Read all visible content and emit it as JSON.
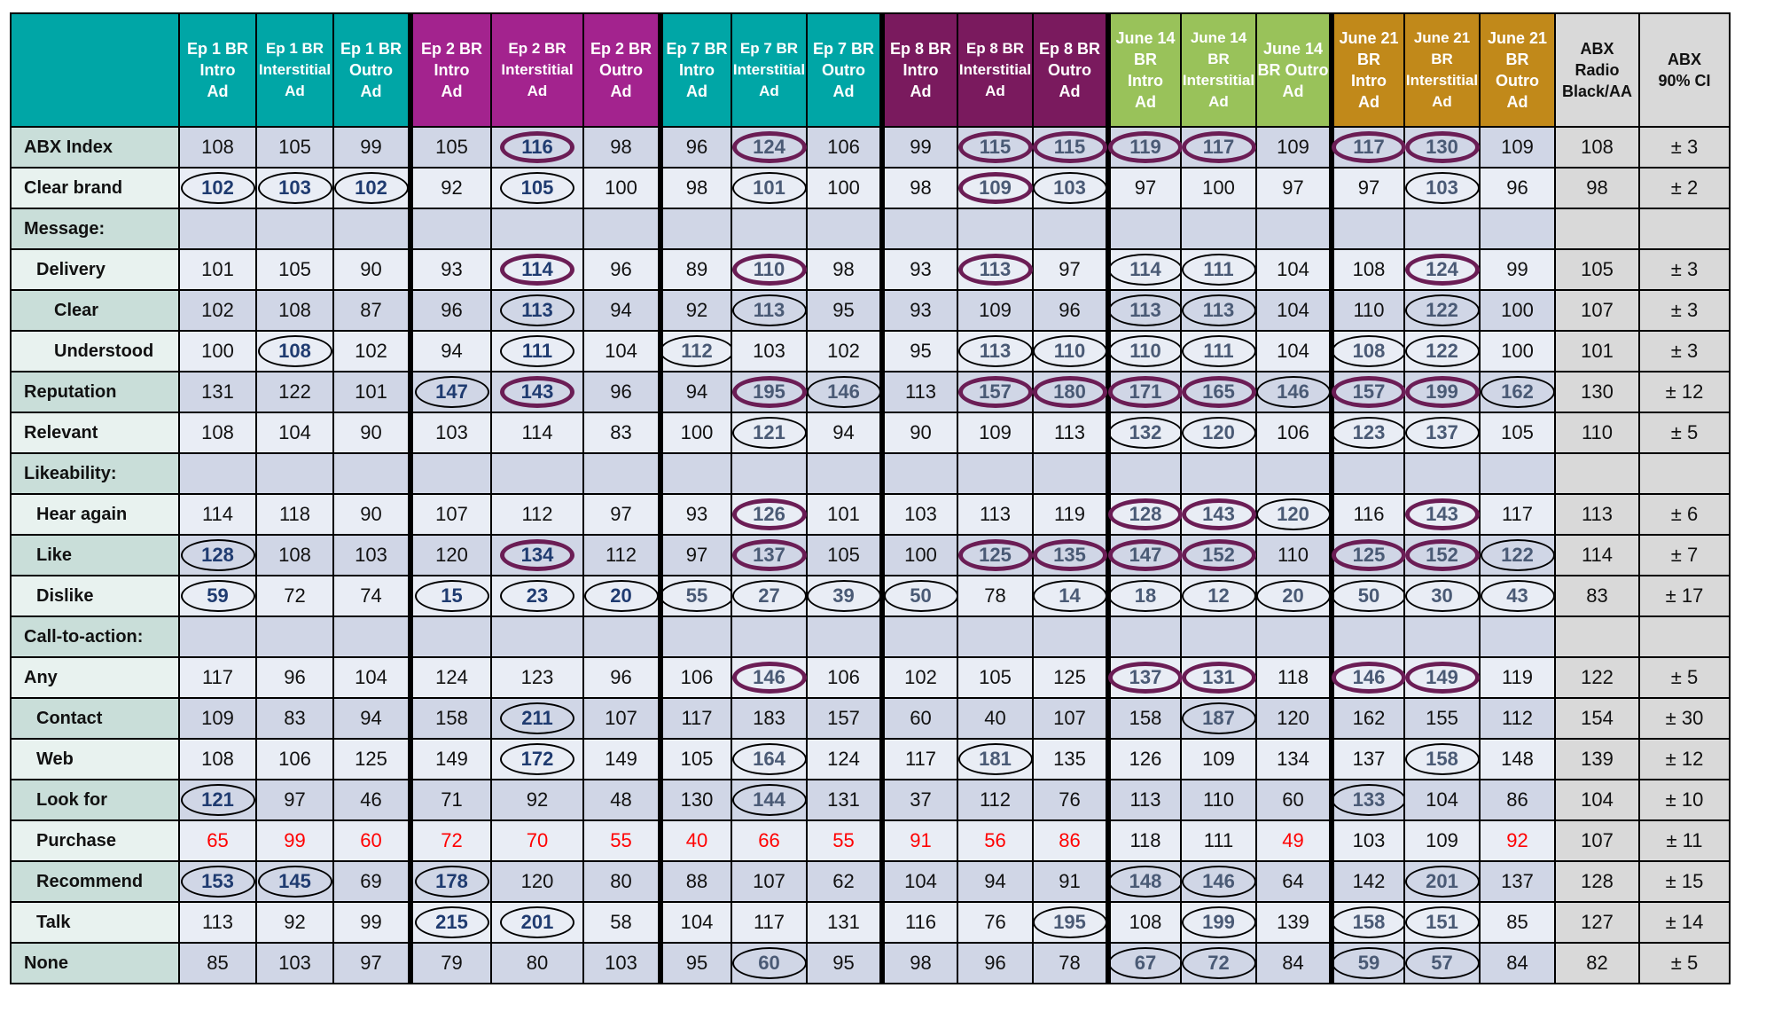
{
  "colors": {
    "teal": "#00a6a6",
    "magenta": "#a3238e",
    "plum": "#7a1a5e",
    "green": "#99c25a",
    "gold": "#c1891a",
    "benchmark": "#d9d9d9",
    "row_label_a": "#c9ded9",
    "row_label_b": "#e8f2ef",
    "row_data_a": "#d0d6e6",
    "row_data_b": "#e9edf5",
    "red_text": "#ff0000",
    "purple_ring": "#6b1d55"
  },
  "chart_data": {
    "type": "table",
    "columns": [
      {
        "label": "Ep 1 BR\nIntro\nAd",
        "group": "teal"
      },
      {
        "label": "Ep 1 BR\nInterstitial\nAd",
        "group": "teal"
      },
      {
        "label": "Ep 1 BR\nOutro\nAd",
        "group": "teal"
      },
      {
        "label": "Ep 2 BR\nIntro\nAd",
        "group": "magenta"
      },
      {
        "label": "Ep 2  BR\nInterstitial\nAd",
        "group": "magenta"
      },
      {
        "label": "Ep 2 BR\nOutro\nAd",
        "group": "magenta"
      },
      {
        "label": "Ep 7 BR\nIntro\nAd",
        "group": "teal"
      },
      {
        "label": "Ep 7 BR\nInterstitial\nAd",
        "group": "teal"
      },
      {
        "label": "Ep 7 BR\nOutro\nAd",
        "group": "teal"
      },
      {
        "label": "Ep 8 BR\nIntro\nAd",
        "group": "plum"
      },
      {
        "label": "Ep 8 BR\nInterstitial\nAd",
        "group": "plum"
      },
      {
        "label": "Ep 8 BR\nOutro\nAd",
        "group": "plum"
      },
      {
        "label": "June 14\nBR\nIntro\nAd",
        "group": "green"
      },
      {
        "label": "June 14\nBR\nInterstitial\nAd",
        "group": "green"
      },
      {
        "label": "June 14\nBR Outro\nAd",
        "group": "green"
      },
      {
        "label": "June 21\nBR\nIntro\nAd",
        "group": "gold"
      },
      {
        "label": "June 21\nBR\nInterstitial\nAd",
        "group": "gold"
      },
      {
        "label": "June 21\nBR\nOutro\nAd",
        "group": "gold"
      },
      {
        "label": "ABX\nRadio\nBlack/AA",
        "group": "bench"
      },
      {
        "label": "ABX\n90% CI",
        "group": "bench"
      }
    ],
    "rows": [
      {
        "label": "ABX Index",
        "indent": 0,
        "values": [
          "108",
          "105",
          "99",
          "105",
          "116",
          "98",
          "96",
          "124",
          "106",
          "99",
          "115",
          "115",
          "119",
          "117",
          "109",
          "117",
          "130",
          "109",
          "108",
          "± 3"
        ]
      },
      {
        "label": "Clear brand",
        "indent": 0,
        "values": [
          "102",
          "103",
          "102",
          "92",
          "105",
          "100",
          "98",
          "101",
          "100",
          "98",
          "109",
          "103",
          "97",
          "100",
          "97",
          "97",
          "103",
          "96",
          "98",
          "± 2"
        ]
      },
      {
        "label": "Message:",
        "indent": 0,
        "values": [
          "",
          "",
          "",
          "",
          "",
          "",
          "",
          "",
          "",
          "",
          "",
          "",
          "",
          "",
          "",
          "",
          "",
          "",
          "",
          ""
        ]
      },
      {
        "label": "Delivery",
        "indent": 1,
        "values": [
          "101",
          "105",
          "90",
          "93",
          "114",
          "96",
          "89",
          "110",
          "98",
          "93",
          "113",
          "97",
          "114",
          "111",
          "104",
          "108",
          "124",
          "99",
          "105",
          "± 3"
        ]
      },
      {
        "label": "Clear",
        "indent": 2,
        "values": [
          "102",
          "108",
          "87",
          "96",
          "113",
          "94",
          "92",
          "113",
          "95",
          "93",
          "109",
          "96",
          "113",
          "113",
          "104",
          "110",
          "122",
          "100",
          "107",
          "± 3"
        ]
      },
      {
        "label": "Understood",
        "indent": 2,
        "values": [
          "100",
          "108",
          "102",
          "94",
          "111",
          "104",
          "112",
          "103",
          "102",
          "95",
          "113",
          "110",
          "110",
          "111",
          "104",
          "108",
          "122",
          "100",
          "101",
          "± 3"
        ]
      },
      {
        "label": "Reputation",
        "indent": 0,
        "values": [
          "131",
          "122",
          "101",
          "147",
          "143",
          "96",
          "94",
          "195",
          "146",
          "113",
          "157",
          "180",
          "171",
          "165",
          "146",
          "157",
          "199",
          "162",
          "130",
          "± 12"
        ]
      },
      {
        "label": "Relevant",
        "indent": 0,
        "values": [
          "108",
          "104",
          "90",
          "103",
          "114",
          "83",
          "100",
          "121",
          "94",
          "90",
          "109",
          "113",
          "132",
          "120",
          "106",
          "123",
          "137",
          "105",
          "110",
          "± 5"
        ]
      },
      {
        "label": "Likeability:",
        "indent": 0,
        "values": [
          "",
          "",
          "",
          "",
          "",
          "",
          "",
          "",
          "",
          "",
          "",
          "",
          "",
          "",
          "",
          "",
          "",
          "",
          "",
          ""
        ]
      },
      {
        "label": "Hear again",
        "indent": 1,
        "values": [
          "114",
          "118",
          "90",
          "107",
          "112",
          "97",
          "93",
          "126",
          "101",
          "103",
          "113",
          "119",
          "128",
          "143",
          "120",
          "116",
          "143",
          "117",
          "113",
          "± 6"
        ]
      },
      {
        "label": "Like",
        "indent": 1,
        "values": [
          "128",
          "108",
          "103",
          "120",
          "134",
          "112",
          "97",
          "137",
          "105",
          "100",
          "125",
          "135",
          "147",
          "152",
          "110",
          "125",
          "152",
          "122",
          "114",
          "± 7"
        ]
      },
      {
        "label": "Dislike",
        "indent": 1,
        "values": [
          "59",
          "72",
          "74",
          "15",
          "23",
          "20",
          "55",
          "27",
          "39",
          "50",
          "78",
          "14",
          "18",
          "12",
          "20",
          "50",
          "30",
          "43",
          "83",
          "± 17"
        ]
      },
      {
        "label": "Call-to-action:",
        "indent": 0,
        "values": [
          "",
          "",
          "",
          "",
          "",
          "",
          "",
          "",
          "",
          "",
          "",
          "",
          "",
          "",
          "",
          "",
          "",
          "",
          "",
          ""
        ]
      },
      {
        "label": "Any",
        "indent": 0,
        "values": [
          "117",
          "96",
          "104",
          "124",
          "123",
          "96",
          "106",
          "146",
          "106",
          "102",
          "105",
          "125",
          "137",
          "131",
          "118",
          "146",
          "149",
          "119",
          "122",
          "± 5"
        ]
      },
      {
        "label": "Contact",
        "indent": 1,
        "values": [
          "109",
          "83",
          "94",
          "158",
          "211",
          "107",
          "117",
          "183",
          "157",
          "60",
          "40",
          "107",
          "158",
          "187",
          "120",
          "162",
          "155",
          "112",
          "154",
          "± 30"
        ]
      },
      {
        "label": "Web",
        "indent": 1,
        "values": [
          "108",
          "106",
          "125",
          "149",
          "172",
          "149",
          "105",
          "164",
          "124",
          "117",
          "181",
          "135",
          "126",
          "109",
          "134",
          "137",
          "158",
          "148",
          "139",
          "± 12"
        ]
      },
      {
        "label": "Look for",
        "indent": 1,
        "values": [
          "121",
          "97",
          "46",
          "71",
          "92",
          "48",
          "130",
          "144",
          "131",
          "37",
          "112",
          "76",
          "113",
          "110",
          "60",
          "133",
          "104",
          "86",
          "104",
          "± 10"
        ]
      },
      {
        "label": "Purchase",
        "indent": 1,
        "values": [
          "65",
          "99",
          "60",
          "72",
          "70",
          "55",
          "40",
          "66",
          "55",
          "91",
          "56",
          "86",
          "118",
          "111",
          "49",
          "103",
          "109",
          "92",
          "107",
          "± 11"
        ]
      },
      {
        "label": "Recommend",
        "indent": 1,
        "values": [
          "153",
          "145",
          "69",
          "178",
          "120",
          "80",
          "88",
          "107",
          "62",
          "104",
          "94",
          "91",
          "148",
          "146",
          "64",
          "142",
          "201",
          "137",
          "128",
          "± 15"
        ]
      },
      {
        "label": "Talk",
        "indent": 1,
        "values": [
          "113",
          "92",
          "99",
          "215",
          "201",
          "58",
          "104",
          "117",
          "131",
          "116",
          "76",
          "195",
          "108",
          "199",
          "139",
          "158",
          "151",
          "85",
          "127",
          "± 14"
        ]
      },
      {
        "label": "None",
        "indent": 0,
        "values": [
          "85",
          "103",
          "97",
          "79",
          "80",
          "103",
          "95",
          "60",
          "95",
          "98",
          "96",
          "78",
          "67",
          "72",
          "84",
          "59",
          "57",
          "84",
          "82",
          "± 5"
        ]
      }
    ],
    "circled": {
      "purple": [
        [
          0,
          4
        ],
        [
          0,
          7
        ],
        [
          0,
          10
        ],
        [
          0,
          11
        ],
        [
          0,
          12
        ],
        [
          0,
          13
        ],
        [
          0,
          15
        ],
        [
          0,
          16
        ],
        [
          1,
          10
        ],
        [
          3,
          4
        ],
        [
          3,
          7
        ],
        [
          3,
          10
        ],
        [
          3,
          16
        ],
        [
          6,
          4
        ],
        [
          6,
          7
        ],
        [
          6,
          10
        ],
        [
          6,
          11
        ],
        [
          6,
          12
        ],
        [
          6,
          13
        ],
        [
          6,
          15
        ],
        [
          6,
          16
        ],
        [
          9,
          7
        ],
        [
          9,
          12
        ],
        [
          9,
          13
        ],
        [
          9,
          16
        ],
        [
          10,
          4
        ],
        [
          10,
          7
        ],
        [
          10,
          10
        ],
        [
          10,
          11
        ],
        [
          10,
          12
        ],
        [
          10,
          13
        ],
        [
          10,
          15
        ],
        [
          10,
          16
        ],
        [
          13,
          7
        ],
        [
          13,
          12
        ],
        [
          13,
          13
        ],
        [
          13,
          15
        ],
        [
          13,
          16
        ]
      ],
      "black": [
        [
          1,
          0
        ],
        [
          1,
          1
        ],
        [
          1,
          2
        ],
        [
          1,
          4
        ],
        [
          1,
          7
        ],
        [
          1,
          11
        ],
        [
          1,
          16
        ],
        [
          3,
          12
        ],
        [
          3,
          13
        ],
        [
          4,
          4
        ],
        [
          4,
          7
        ],
        [
          4,
          12
        ],
        [
          4,
          13
        ],
        [
          4,
          16
        ],
        [
          5,
          1
        ],
        [
          5,
          4
        ],
        [
          5,
          6
        ],
        [
          5,
          10
        ],
        [
          5,
          11
        ],
        [
          5,
          12
        ],
        [
          5,
          13
        ],
        [
          5,
          15
        ],
        [
          5,
          16
        ],
        [
          6,
          3
        ],
        [
          6,
          8
        ],
        [
          6,
          14
        ],
        [
          6,
          17
        ],
        [
          7,
          7
        ],
        [
          7,
          12
        ],
        [
          7,
          13
        ],
        [
          7,
          15
        ],
        [
          7,
          16
        ],
        [
          9,
          14
        ],
        [
          10,
          0
        ],
        [
          10,
          17
        ],
        [
          11,
          0
        ],
        [
          11,
          3
        ],
        [
          11,
          4
        ],
        [
          11,
          5
        ],
        [
          11,
          6
        ],
        [
          11,
          7
        ],
        [
          11,
          8
        ],
        [
          11,
          9
        ],
        [
          11,
          11
        ],
        [
          11,
          12
        ],
        [
          11,
          13
        ],
        [
          11,
          14
        ],
        [
          11,
          15
        ],
        [
          11,
          16
        ],
        [
          11,
          17
        ],
        [
          14,
          4
        ],
        [
          14,
          13
        ],
        [
          15,
          4
        ],
        [
          15,
          7
        ],
        [
          15,
          10
        ],
        [
          15,
          16
        ],
        [
          16,
          0
        ],
        [
          16,
          7
        ],
        [
          16,
          15
        ],
        [
          18,
          0
        ],
        [
          18,
          1
        ],
        [
          18,
          3
        ],
        [
          18,
          12
        ],
        [
          18,
          13
        ],
        [
          18,
          16
        ],
        [
          19,
          3
        ],
        [
          19,
          4
        ],
        [
          19,
          11
        ],
        [
          19,
          13
        ],
        [
          19,
          15
        ],
        [
          19,
          16
        ],
        [
          20,
          7
        ],
        [
          20,
          12
        ],
        [
          20,
          13
        ],
        [
          20,
          15
        ],
        [
          20,
          16
        ]
      ]
    },
    "red_row": 17,
    "red_cols": [
      0,
      1,
      2,
      3,
      4,
      5,
      6,
      7,
      8,
      9,
      10,
      11,
      14,
      17
    ]
  }
}
